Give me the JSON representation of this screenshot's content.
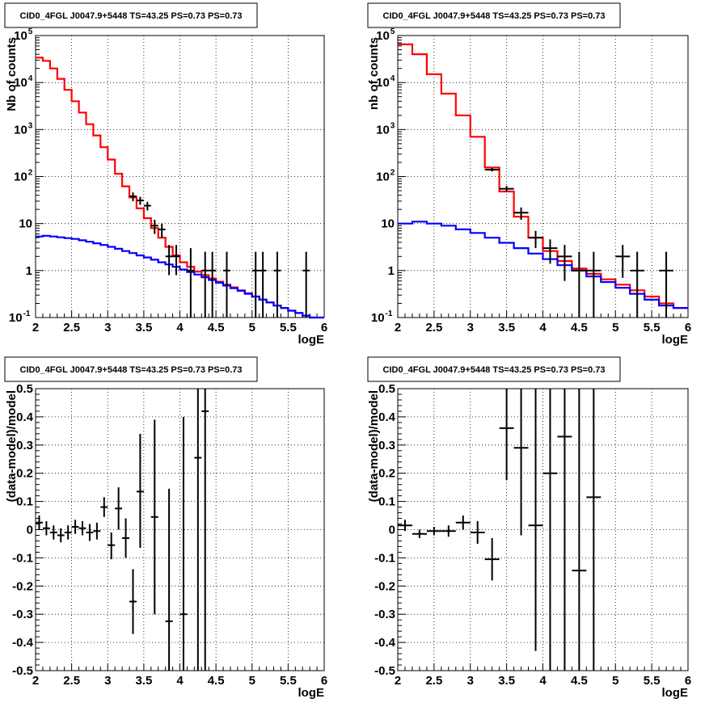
{
  "chart_data": [
    {
      "type": "step-histogram",
      "title": "CID0_4FGL J0047.9+5448 TS=43.25 PS=0.73 PS=0.73",
      "xlabel": "logE",
      "ylabel": "Nb of counts",
      "xlim": [
        2,
        6
      ],
      "ylim": [
        0.1,
        100000
      ],
      "yscale": "log",
      "grid": true,
      "x_ticks": [
        "2",
        "2.5",
        "3",
        "3.5",
        "4",
        "4.5",
        "5",
        "5.5",
        "6"
      ],
      "y_ticks": [
        {
          "base": "10",
          "exp": "-1"
        },
        {
          "base": "1",
          "exp": ""
        },
        {
          "base": "10",
          "exp": ""
        },
        {
          "base": "10",
          "exp": "2"
        },
        {
          "base": "10",
          "exp": "3"
        },
        {
          "base": "10",
          "exp": "4"
        },
        {
          "base": "10",
          "exp": "5"
        }
      ],
      "bin_width": 0.1,
      "series": [
        {
          "color": "#ff0000",
          "x": [
            2.0,
            2.1,
            2.2,
            2.3,
            2.4,
            2.5,
            2.6,
            2.7,
            2.8,
            2.9,
            3.0,
            3.1,
            3.2,
            3.3,
            3.4,
            3.5,
            3.6,
            3.7,
            3.8,
            3.9,
            4.0,
            4.1,
            4.2,
            4.3,
            4.4,
            4.5,
            4.6,
            4.7,
            4.8,
            4.9,
            5.0,
            5.1,
            5.2,
            5.3,
            5.4,
            5.5,
            5.6,
            5.7,
            5.8,
            5.9
          ],
          "values": [
            34000,
            29000,
            20000,
            12000,
            7000,
            4000,
            2300,
            1300,
            750,
            420,
            230,
            115,
            62,
            36,
            21,
            13,
            8,
            5,
            3.2,
            2.1,
            1.5,
            1.2,
            0.95,
            0.8,
            0.68,
            0.58,
            0.5,
            0.44,
            0.38,
            0.33,
            0.28,
            0.24,
            0.21,
            0.18,
            0.16,
            0.14,
            0.125,
            0.11,
            0.1,
            0.1
          ]
        },
        {
          "color": "#0000ff",
          "x": [
            2.0,
            2.1,
            2.2,
            2.3,
            2.4,
            2.5,
            2.6,
            2.7,
            2.8,
            2.9,
            3.0,
            3.1,
            3.2,
            3.3,
            3.4,
            3.5,
            3.6,
            3.7,
            3.8,
            3.9,
            4.0,
            4.1,
            4.2,
            4.3,
            4.4,
            4.5,
            4.6,
            4.7,
            4.8,
            4.9,
            5.0,
            5.1,
            5.2,
            5.3,
            5.4,
            5.5,
            5.6,
            5.7,
            5.8,
            5.9
          ],
          "values": [
            5.3,
            5.5,
            5.3,
            5.1,
            4.9,
            4.7,
            4.4,
            4.1,
            3.8,
            3.5,
            3.2,
            2.9,
            2.6,
            2.35,
            2.1,
            1.9,
            1.7,
            1.5,
            1.35,
            1.2,
            1.05,
            0.93,
            0.82,
            0.72,
            0.63,
            0.55,
            0.48,
            0.42,
            0.37,
            0.32,
            0.28,
            0.24,
            0.21,
            0.18,
            0.16,
            0.14,
            0.125,
            0.11,
            0.1,
            0.1
          ]
        }
      ],
      "points": [
        {
          "x": 3.35,
          "y": 38,
          "lo": 30,
          "hi": 46
        },
        {
          "x": 3.45,
          "y": 31,
          "lo": 25,
          "hi": 37
        },
        {
          "x": 3.55,
          "y": 24,
          "lo": 19,
          "hi": 29
        },
        {
          "x": 3.65,
          "y": 9,
          "lo": 6,
          "hi": 12
        },
        {
          "x": 3.75,
          "y": 7.5,
          "lo": 5,
          "hi": 10
        },
        {
          "x": 3.85,
          "y": 2,
          "lo": 0.8,
          "hi": 3.5
        },
        {
          "x": 3.95,
          "y": 2,
          "lo": 0.8,
          "hi": 3.5
        },
        {
          "x": 4.15,
          "y": 1,
          "lo": 0.1,
          "hi": 3
        },
        {
          "x": 4.35,
          "y": 1,
          "lo": 0.1,
          "hi": 2.5
        },
        {
          "x": 4.45,
          "y": 1,
          "lo": 0.1,
          "hi": 2.5
        },
        {
          "x": 4.65,
          "y": 1,
          "lo": 0.1,
          "hi": 2.5
        },
        {
          "x": 5.05,
          "y": 1,
          "lo": 0.1,
          "hi": 2.5
        },
        {
          "x": 5.15,
          "y": 1,
          "lo": 0.1,
          "hi": 2.5
        },
        {
          "x": 5.35,
          "y": 1,
          "lo": 0.1,
          "hi": 2.5
        },
        {
          "x": 5.75,
          "y": 1,
          "lo": 0.1,
          "hi": 2.5
        }
      ]
    },
    {
      "type": "step-histogram",
      "title": "CID0_4FGL J0047.9+5448 TS=43.25 PS=0.73 PS=0.73",
      "xlabel": "logE",
      "ylabel": "nb of counts",
      "xlim": [
        2,
        6
      ],
      "ylim": [
        0.1,
        100000
      ],
      "yscale": "log",
      "grid": true,
      "x_ticks": [
        "2",
        "2.5",
        "3",
        "3.5",
        "4",
        "4.5",
        "5",
        "5.5",
        "6"
      ],
      "y_ticks": [
        {
          "base": "10",
          "exp": "-1"
        },
        {
          "base": "1",
          "exp": ""
        },
        {
          "base": "10",
          "exp": ""
        },
        {
          "base": "10",
          "exp": "2"
        },
        {
          "base": "10",
          "exp": "3"
        },
        {
          "base": "10",
          "exp": "4"
        },
        {
          "base": "10",
          "exp": "5"
        }
      ],
      "bin_width": 0.2,
      "series": [
        {
          "color": "#ff0000",
          "x": [
            2.0,
            2.2,
            2.4,
            2.6,
            2.8,
            3.0,
            3.2,
            3.4,
            3.6,
            3.8,
            4.0,
            4.2,
            4.4,
            4.6,
            4.8,
            5.0,
            5.2,
            5.4,
            5.6,
            5.8
          ],
          "values": [
            65000,
            40000,
            15000,
            5800,
            2000,
            700,
            155,
            48,
            14,
            5,
            2.6,
            1.6,
            1.1,
            0.85,
            0.65,
            0.5,
            0.38,
            0.28,
            0.2,
            0.16
          ]
        },
        {
          "color": "#0000ff",
          "x": [
            2.0,
            2.2,
            2.4,
            2.6,
            2.8,
            3.0,
            3.2,
            3.4,
            3.6,
            3.8,
            4.0,
            4.2,
            4.4,
            4.6,
            4.8,
            5.0,
            5.2,
            5.4,
            5.6,
            5.8
          ],
          "values": [
            10,
            11,
            10,
            9,
            7.5,
            6.3,
            5,
            3.9,
            3,
            2.3,
            1.75,
            1.3,
            1,
            0.75,
            0.57,
            0.43,
            0.32,
            0.24,
            0.18,
            0.16
          ]
        }
      ],
      "points": [
        {
          "x": 3.3,
          "y": 140,
          "lo": 128,
          "hi": 152
        },
        {
          "x": 3.5,
          "y": 55,
          "lo": 48,
          "hi": 63
        },
        {
          "x": 3.7,
          "y": 17,
          "lo": 12,
          "hi": 22
        },
        {
          "x": 3.9,
          "y": 5,
          "lo": 3,
          "hi": 7
        },
        {
          "x": 4.1,
          "y": 3,
          "lo": 1.4,
          "hi": 4.6
        },
        {
          "x": 4.3,
          "y": 2,
          "lo": 0.6,
          "hi": 3.5
        },
        {
          "x": 4.5,
          "y": 1,
          "lo": 0.1,
          "hi": 2.5
        },
        {
          "x": 4.7,
          "y": 1,
          "lo": 0.1,
          "hi": 2.5
        },
        {
          "x": 5.1,
          "y": 2,
          "lo": 0.7,
          "hi": 3.5
        },
        {
          "x": 5.3,
          "y": 1,
          "lo": 0.1,
          "hi": 2.5
        },
        {
          "x": 5.7,
          "y": 1,
          "lo": 0.1,
          "hi": 2.5
        }
      ]
    },
    {
      "type": "scatter-errorbars",
      "title": "CID0_4FGL J0047.9+5448 TS=43.25 PS=0.73 PS=0.73",
      "xlabel": "logE",
      "ylabel": "(data-model)/model",
      "xlim": [
        2,
        6
      ],
      "ylim": [
        -0.5,
        0.5
      ],
      "grid": true,
      "x_ticks": [
        "2",
        "2.5",
        "3",
        "3.5",
        "4",
        "4.5",
        "5",
        "5.5",
        "6"
      ],
      "y_ticks": [
        "-0.5",
        "-0.4",
        "-0.3",
        "-0.2",
        "-0.1",
        "0",
        "0.1",
        "0.2",
        "0.3",
        "0.4",
        "0.5"
      ],
      "bin_width": 0.1,
      "points": [
        {
          "x": 2.05,
          "y": 0.025,
          "lo": 0.0,
          "hi": 0.05
        },
        {
          "x": 2.15,
          "y": 0.005,
          "lo": -0.02,
          "hi": 0.03
        },
        {
          "x": 2.25,
          "y": -0.01,
          "lo": -0.035,
          "hi": 0.015
        },
        {
          "x": 2.35,
          "y": -0.02,
          "lo": -0.045,
          "hi": 0.005
        },
        {
          "x": 2.45,
          "y": -0.01,
          "lo": -0.035,
          "hi": 0.015
        },
        {
          "x": 2.55,
          "y": 0.01,
          "lo": -0.015,
          "hi": 0.035
        },
        {
          "x": 2.65,
          "y": 0.005,
          "lo": -0.02,
          "hi": 0.03
        },
        {
          "x": 2.75,
          "y": -0.01,
          "lo": -0.04,
          "hi": 0.02
        },
        {
          "x": 2.85,
          "y": -0.005,
          "lo": -0.035,
          "hi": 0.025
        },
        {
          "x": 2.95,
          "y": 0.08,
          "lo": 0.045,
          "hi": 0.115
        },
        {
          "x": 3.05,
          "y": -0.055,
          "lo": -0.105,
          "hi": -0.01
        },
        {
          "x": 3.15,
          "y": 0.075,
          "lo": 0.0,
          "hi": 0.15
        },
        {
          "x": 3.25,
          "y": -0.03,
          "lo": -0.1,
          "hi": 0.04
        },
        {
          "x": 3.35,
          "y": -0.255,
          "lo": -0.37,
          "hi": -0.14
        },
        {
          "x": 3.45,
          "y": 0.135,
          "lo": -0.065,
          "hi": 0.34
        },
        {
          "x": 3.65,
          "y": 0.045,
          "lo": -0.3,
          "hi": 0.39
        },
        {
          "x": 3.85,
          "y": -0.325,
          "lo": -0.5,
          "hi": 0.145
        },
        {
          "x": 4.05,
          "y": -0.3,
          "lo": -0.5,
          "hi": 0.4
        },
        {
          "x": 4.25,
          "y": 0.255,
          "lo": -0.5,
          "hi": 0.5
        },
        {
          "x": 4.35,
          "y": 0.42,
          "lo": -0.5,
          "hi": 0.5
        }
      ]
    },
    {
      "type": "scatter-errorbars",
      "title": "CID0_4FGL J0047.9+5448 TS=43.25 PS=0.73 PS=0.73",
      "xlabel": "logE",
      "ylabel": "(data-model)/model",
      "xlim": [
        2,
        6
      ],
      "ylim": [
        -0.5,
        0.5
      ],
      "grid": true,
      "x_ticks": [
        "2",
        "2.5",
        "3",
        "3.5",
        "4",
        "4.5",
        "5",
        "5.5",
        "6"
      ],
      "y_ticks": [
        "-0.5",
        "-0.4",
        "-0.3",
        "-0.2",
        "-0.1",
        "0",
        "0.1",
        "0.2",
        "0.3",
        "0.4",
        "0.5"
      ],
      "bin_width": 0.2,
      "points": [
        {
          "x": 2.1,
          "y": 0.015,
          "lo": -0.005,
          "hi": 0.035
        },
        {
          "x": 2.3,
          "y": -0.015,
          "lo": -0.03,
          "hi": 0.0
        },
        {
          "x": 2.5,
          "y": -0.005,
          "lo": -0.02,
          "hi": 0.01
        },
        {
          "x": 2.7,
          "y": -0.005,
          "lo": -0.025,
          "hi": 0.015
        },
        {
          "x": 2.9,
          "y": 0.025,
          "lo": 0.0,
          "hi": 0.05
        },
        {
          "x": 3.1,
          "y": -0.01,
          "lo": -0.05,
          "hi": 0.03
        },
        {
          "x": 3.3,
          "y": -0.105,
          "lo": -0.18,
          "hi": -0.03
        },
        {
          "x": 3.5,
          "y": 0.36,
          "lo": 0.175,
          "hi": 0.5
        },
        {
          "x": 3.7,
          "y": 0.29,
          "lo": -0.02,
          "hi": 0.5
        },
        {
          "x": 3.9,
          "y": 0.015,
          "lo": -0.43,
          "hi": 0.5
        },
        {
          "x": 4.1,
          "y": 0.2,
          "lo": -0.5,
          "hi": 0.5
        },
        {
          "x": 4.3,
          "y": 0.33,
          "lo": -0.5,
          "hi": 0.5
        },
        {
          "x": 4.5,
          "y": -0.145,
          "lo": -0.5,
          "hi": 0.5
        },
        {
          "x": 4.7,
          "y": 0.115,
          "lo": -0.5,
          "hi": 0.5
        }
      ]
    }
  ]
}
